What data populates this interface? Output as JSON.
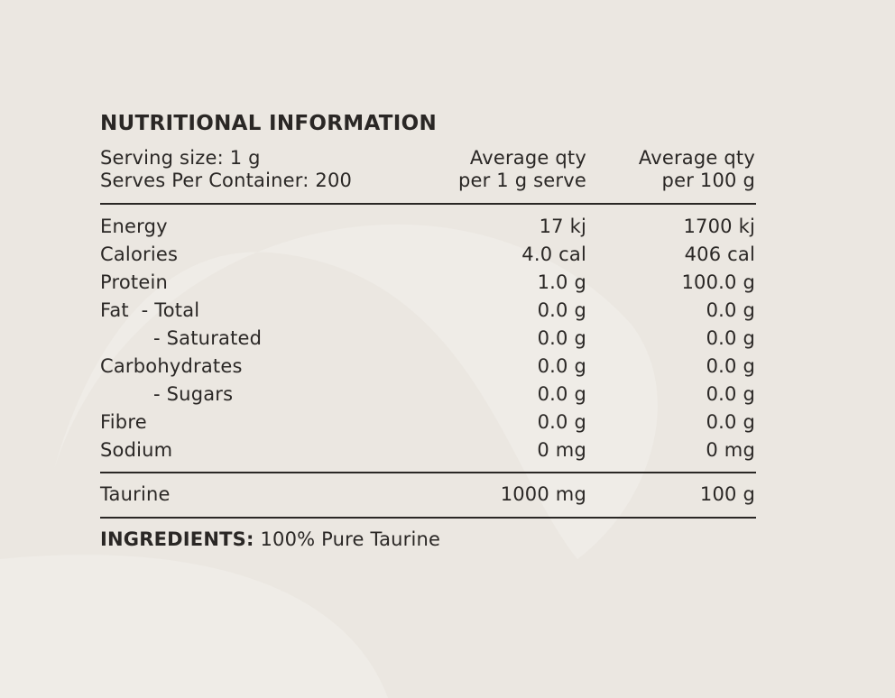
{
  "title": "NUTRITIONAL INFORMATION",
  "header": {
    "serving_size": "Serving size: 1 g",
    "serves_per_container": "Serves Per Container: 200",
    "columns": [
      [
        "Average qty",
        "per 1 g serve"
      ],
      [
        "Average qty",
        "per 100 g"
      ]
    ]
  },
  "table": {
    "rows": [
      [
        "Energy",
        "17 kj",
        "1700 kj"
      ],
      [
        "Calories",
        "4.0 cal",
        "406 cal"
      ],
      [
        "Protein",
        "1.0 g",
        "100.0 g"
      ],
      [
        "Fat  - Total",
        "0.0 g",
        "0.0 g"
      ],
      [
        "- Saturated",
        "0.0 g",
        "0.0 g"
      ],
      [
        "Carbohydrates",
        "0.0 g",
        "0.0 g"
      ],
      [
        "- Sugars",
        "0.0 g",
        "0.0 g"
      ],
      [
        "Fibre",
        "0.0 g",
        "0.0 g"
      ],
      [
        "Sodium",
        "0 mg",
        "0 mg"
      ]
    ],
    "extra_rows": [
      [
        "Taurine",
        "1000 mg",
        "100 g"
      ]
    ]
  },
  "ingredients": {
    "label": "INGREDIENTS:",
    "text": "100% Pure Taurine"
  }
}
